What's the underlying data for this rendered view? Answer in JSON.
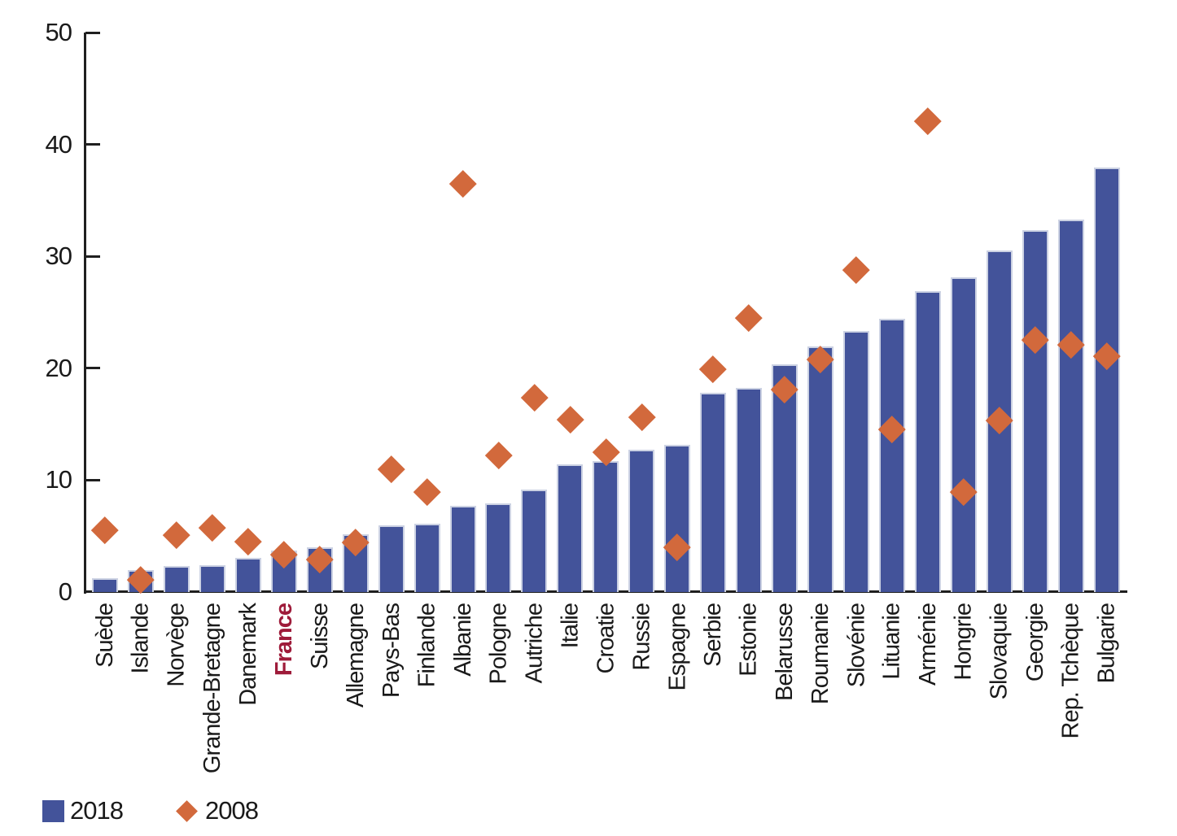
{
  "chart_data": {
    "type": "bar",
    "title": "",
    "xlabel": "",
    "ylabel": "",
    "ylim": [
      0,
      50
    ],
    "yticks": [
      0,
      10,
      20,
      30,
      40,
      50
    ],
    "grid": false,
    "legend_position": "bottom-left",
    "highlight": {
      "category": "France",
      "color": "#9e1b3a"
    },
    "categories": [
      "Suède",
      "Islande",
      "Norvège",
      "Grande-Bretagne",
      "Danemark",
      "France",
      "Suisse",
      "Allemagne",
      "Pays-Bas",
      "Finlande",
      "Albanie",
      "Pologne",
      "Autriche",
      "Italie",
      "Croatie",
      "Russie",
      "Espagne",
      "Serbie",
      "Estonie",
      "Belarusse",
      "Roumanie",
      "Slovénie",
      "Lituanie",
      "Arménie",
      "Hongrie",
      "Slovaquie",
      "Georgie",
      "Rep. Tchèque",
      "Bulgarie"
    ],
    "series": [
      {
        "name": "2018",
        "type": "bar",
        "color": "#43539a",
        "values": [
          1.2,
          1.9,
          2.3,
          2.4,
          3.0,
          3.7,
          4.0,
          5.1,
          5.9,
          6.1,
          7.7,
          7.9,
          9.1,
          11.4,
          11.7,
          12.7,
          13.1,
          17.8,
          18.2,
          20.3,
          21.9,
          23.3,
          24.4,
          26.9,
          28.1,
          30.5,
          32.3,
          33.3,
          37.9
        ]
      },
      {
        "name": "2008",
        "type": "scatter-diamond",
        "color": "#d2693c",
        "values": [
          5.5,
          1.1,
          5.1,
          5.7,
          4.5,
          3.3,
          2.9,
          4.4,
          11.0,
          8.9,
          36.5,
          12.2,
          17.4,
          15.4,
          12.5,
          15.6,
          4.0,
          19.9,
          24.5,
          18.1,
          20.8,
          28.8,
          14.5,
          42.1,
          8.9,
          15.3,
          22.5,
          22.1,
          21.1
        ]
      }
    ]
  },
  "legend": {
    "items": [
      {
        "label": "2018",
        "swatch": "square"
      },
      {
        "label": "2008",
        "swatch": "diamond"
      }
    ]
  },
  "colors": {
    "bar": "#43539a",
    "bar_border": "#ccd2e3",
    "marker": "#d2693c",
    "axis": "#1f1f1f",
    "text": "#1a1a1a",
    "highlight": "#9e1b3a"
  }
}
